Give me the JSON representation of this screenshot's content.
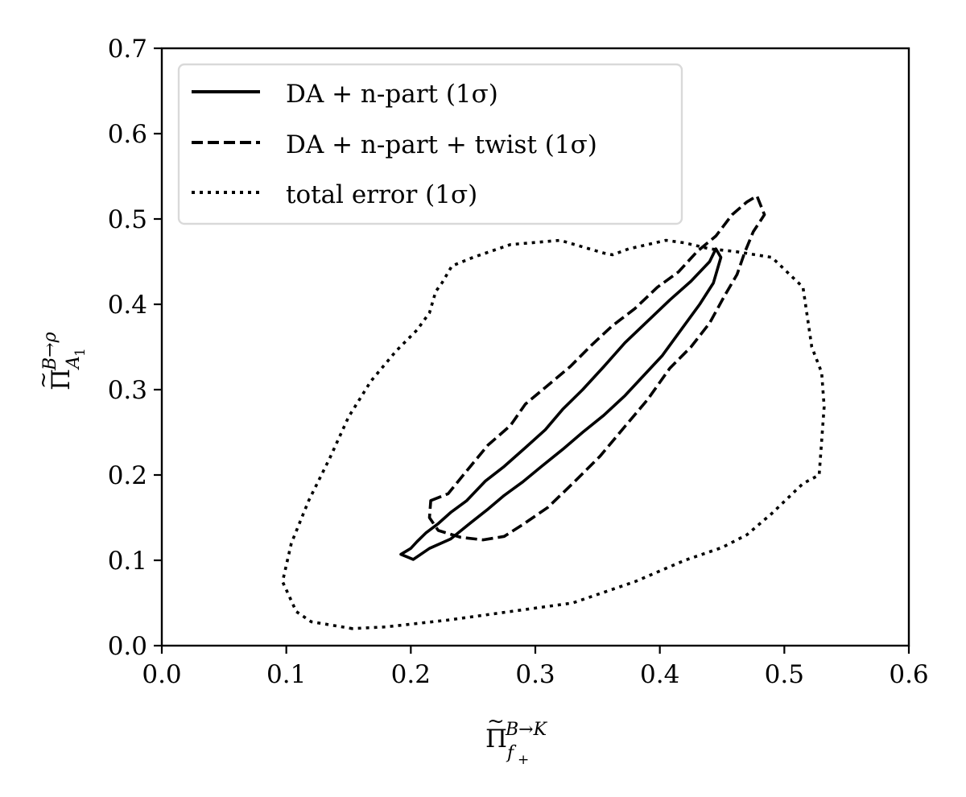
{
  "chart_data": {
    "type": "line",
    "xlabel": {
      "base": "Π",
      "sup": "B→K",
      "sub": "f",
      "subsub": "+"
    },
    "ylabel": {
      "base": "Π",
      "sup": "B→ρ",
      "sub": "A",
      "subsub": "1"
    },
    "xlim": [
      0.0,
      0.6
    ],
    "ylim": [
      0.0,
      0.7
    ],
    "xticks": [
      0.0,
      0.1,
      0.2,
      0.3,
      0.4,
      0.5,
      0.6
    ],
    "yticks": [
      0.0,
      0.1,
      0.2,
      0.3,
      0.4,
      0.5,
      0.6,
      0.7
    ],
    "xtick_labels": [
      "0.0",
      "0.1",
      "0.2",
      "0.3",
      "0.4",
      "0.5",
      "0.6"
    ],
    "ytick_labels": [
      "0.0",
      "0.1",
      "0.2",
      "0.3",
      "0.4",
      "0.5",
      "0.6",
      "0.7"
    ],
    "grid": false,
    "legend_position": "top-left",
    "series": [
      {
        "name": "DA + n-part (1σ)",
        "style": "solid",
        "color": "#000000",
        "x": [
          0.192,
          0.2,
          0.205,
          0.212,
          0.222,
          0.232,
          0.245,
          0.26,
          0.275,
          0.292,
          0.308,
          0.322,
          0.338,
          0.355,
          0.372,
          0.39,
          0.408,
          0.425,
          0.44,
          0.445,
          0.449,
          0.443,
          0.432,
          0.418,
          0.402,
          0.388,
          0.372,
          0.355,
          0.338,
          0.322,
          0.305,
          0.29,
          0.275,
          0.262,
          0.248,
          0.232,
          0.215,
          0.202,
          0.192
        ],
        "y": [
          0.107,
          0.114,
          0.122,
          0.132,
          0.143,
          0.156,
          0.17,
          0.193,
          0.21,
          0.232,
          0.253,
          0.277,
          0.3,
          0.327,
          0.355,
          0.38,
          0.405,
          0.427,
          0.45,
          0.465,
          0.455,
          0.425,
          0.4,
          0.372,
          0.34,
          0.318,
          0.293,
          0.27,
          0.25,
          0.23,
          0.21,
          0.192,
          0.176,
          0.16,
          0.144,
          0.125,
          0.114,
          0.101,
          0.107
        ]
      },
      {
        "name": "DA + n-part + twist (1σ)",
        "style": "dashed",
        "color": "#000000",
        "x": [
          0.216,
          0.23,
          0.245,
          0.262,
          0.28,
          0.292,
          0.31,
          0.328,
          0.345,
          0.362,
          0.38,
          0.398,
          0.415,
          0.43,
          0.445,
          0.458,
          0.47,
          0.478,
          0.484,
          0.475,
          0.468,
          0.462,
          0.452,
          0.44,
          0.425,
          0.408,
          0.39,
          0.372,
          0.352,
          0.33,
          0.31,
          0.29,
          0.275,
          0.258,
          0.24,
          0.222,
          0.215,
          0.216
        ],
        "y": [
          0.17,
          0.178,
          0.205,
          0.235,
          0.258,
          0.283,
          0.305,
          0.327,
          0.352,
          0.375,
          0.395,
          0.42,
          0.438,
          0.462,
          0.48,
          0.505,
          0.52,
          0.527,
          0.505,
          0.485,
          0.46,
          0.435,
          0.41,
          0.378,
          0.35,
          0.325,
          0.288,
          0.257,
          0.222,
          0.19,
          0.162,
          0.142,
          0.128,
          0.124,
          0.127,
          0.135,
          0.15,
          0.17
        ]
      },
      {
        "name": "total error (1σ)",
        "style": "dotted",
        "color": "#000000",
        "x": [
          0.153,
          0.12,
          0.108,
          0.097,
          0.104,
          0.118,
          0.135,
          0.15,
          0.168,
          0.188,
          0.205,
          0.215,
          0.22,
          0.225,
          0.233,
          0.25,
          0.28,
          0.32,
          0.355,
          0.362,
          0.375,
          0.39,
          0.405,
          0.42,
          0.44,
          0.46,
          0.49,
          0.515,
          0.518,
          0.522,
          0.53,
          0.532,
          0.528,
          0.515,
          0.49,
          0.47,
          0.45,
          0.42,
          0.38,
          0.33,
          0.28,
          0.23,
          0.18
        ],
        "y": [
          0.02,
          0.028,
          0.04,
          0.075,
          0.12,
          0.17,
          0.22,
          0.268,
          0.31,
          0.345,
          0.37,
          0.39,
          0.415,
          0.425,
          0.445,
          0.455,
          0.47,
          0.475,
          0.46,
          0.458,
          0.465,
          0.47,
          0.475,
          0.472,
          0.465,
          0.462,
          0.455,
          0.42,
          0.39,
          0.35,
          0.32,
          0.28,
          0.2,
          0.19,
          0.155,
          0.13,
          0.115,
          0.1,
          0.075,
          0.05,
          0.04,
          0.03,
          0.022
        ]
      }
    ]
  }
}
